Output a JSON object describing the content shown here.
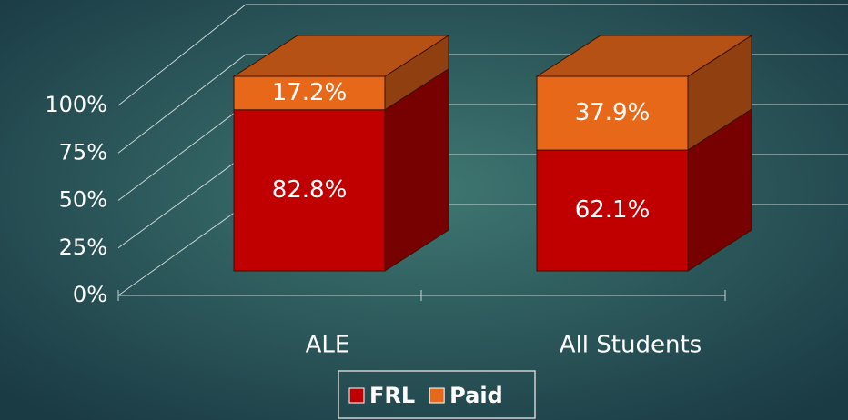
{
  "chart_data": {
    "type": "bar3d_stacked",
    "categories": [
      "ALE",
      "All Students"
    ],
    "series": [
      {
        "name": "FRL",
        "color": "#c00000",
        "values": [
          82.8,
          62.1
        ],
        "value_labels": [
          "82.8%",
          "62.1%"
        ]
      },
      {
        "name": "Paid",
        "color": "#e8681a",
        "values": [
          17.2,
          37.9
        ],
        "value_labels": [
          "17.2%",
          "37.9%"
        ]
      }
    ],
    "ylim": [
      0,
      100
    ],
    "yticks": [
      {
        "value": 0,
        "label": "0%"
      },
      {
        "value": 25,
        "label": "25%"
      },
      {
        "value": 50,
        "label": "50%"
      },
      {
        "value": 75,
        "label": "75%"
      },
      {
        "value": 100,
        "label": "100%"
      }
    ],
    "grid": true,
    "legend": "bottom"
  }
}
